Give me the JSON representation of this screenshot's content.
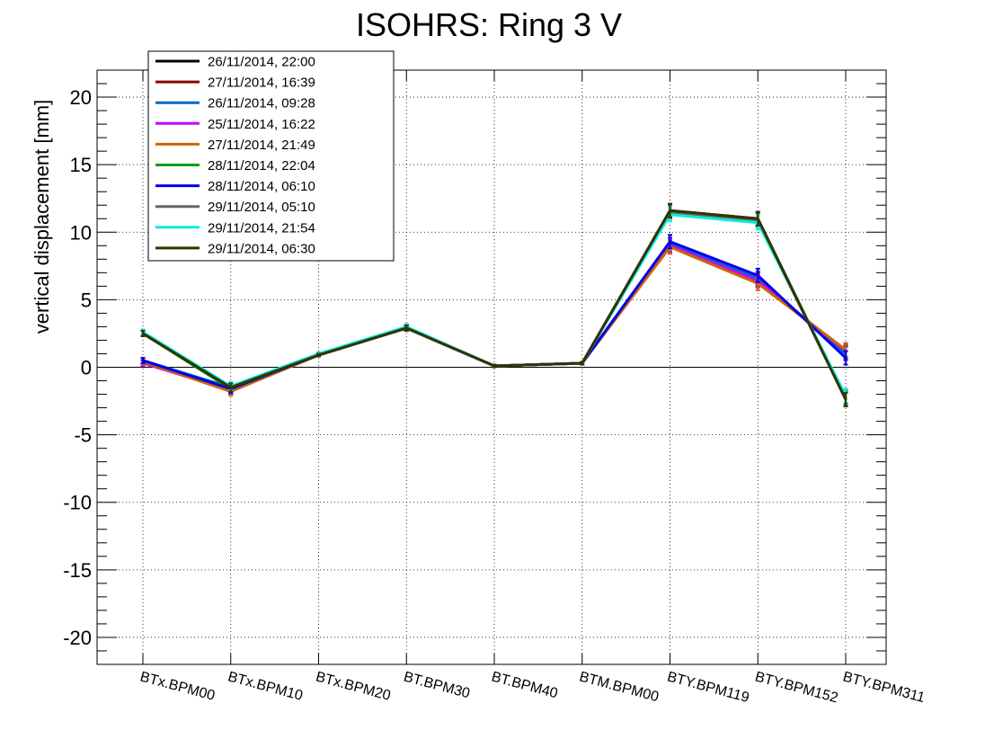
{
  "chart_data": {
    "type": "line",
    "title": "ISOHRS: Ring 3 V",
    "xlabel": "",
    "ylabel": "vertical displacement [mm]",
    "ylim": [
      -22,
      22
    ],
    "yticks": [
      -20,
      -15,
      -10,
      -5,
      0,
      5,
      10,
      15,
      20
    ],
    "grid": true,
    "zero_line": true,
    "legend_position": "top-left",
    "categories": [
      "BTx.BPM00",
      "BTx.BPM10",
      "BTx.BPM20",
      "BT.BPM30",
      "BT.BPM40",
      "BTM.BPM00",
      "BTY.BPM119",
      "BTY.BPM152",
      "BTY.BPM311"
    ],
    "series": [
      {
        "name": "26/11/2014, 22:00",
        "color": "#000000",
        "values": [
          2.5,
          -1.5,
          0.9,
          2.9,
          0.1,
          0.3,
          11.6,
          11.0,
          -2.3
        ],
        "errors": [
          0.2,
          0.3,
          0.1,
          0.2,
          0.1,
          0.1,
          0.5,
          0.5,
          0.5
        ]
      },
      {
        "name": "27/11/2014, 16:39",
        "color": "#8b0000",
        "values": [
          0.4,
          -1.7,
          0.9,
          2.9,
          0.1,
          0.3,
          9.0,
          6.5,
          1.1
        ],
        "errors": [
          0.2,
          0.3,
          0.1,
          0.2,
          0.1,
          0.1,
          0.5,
          0.5,
          0.5
        ]
      },
      {
        "name": "26/11/2014, 09:28",
        "color": "#0066cc",
        "values": [
          0.5,
          -1.5,
          0.9,
          2.9,
          0.1,
          0.3,
          9.1,
          6.6,
          1.0
        ],
        "errors": [
          0.2,
          0.3,
          0.1,
          0.2,
          0.1,
          0.1,
          0.5,
          0.5,
          0.5
        ]
      },
      {
        "name": "25/11/2014, 16:22",
        "color": "#cc00ff",
        "values": [
          0.3,
          -1.7,
          0.9,
          2.9,
          0.1,
          0.3,
          9.0,
          6.4,
          1.2
        ],
        "errors": [
          0.2,
          0.3,
          0.1,
          0.2,
          0.1,
          0.1,
          0.5,
          0.5,
          0.5
        ]
      },
      {
        "name": "27/11/2014, 21:49",
        "color": "#cc6600",
        "values": [
          0.4,
          -1.8,
          0.9,
          2.9,
          0.1,
          0.3,
          8.9,
          6.2,
          1.3
        ],
        "errors": [
          0.2,
          0.3,
          0.1,
          0.2,
          0.1,
          0.1,
          0.5,
          0.5,
          0.5
        ]
      },
      {
        "name": "28/11/2014, 22:04",
        "color": "#00a000",
        "values": [
          2.5,
          -1.6,
          0.9,
          2.9,
          0.1,
          0.3,
          11.5,
          10.9,
          -2.2
        ],
        "errors": [
          0.2,
          0.3,
          0.1,
          0.2,
          0.1,
          0.1,
          0.5,
          0.5,
          0.5
        ]
      },
      {
        "name": "28/11/2014, 06:10",
        "color": "#0000ee",
        "values": [
          0.5,
          -1.6,
          0.9,
          2.9,
          0.1,
          0.3,
          9.3,
          6.8,
          0.7
        ],
        "errors": [
          0.2,
          0.3,
          0.1,
          0.2,
          0.1,
          0.1,
          0.5,
          0.5,
          0.5
        ]
      },
      {
        "name": "29/11/2014, 05:10",
        "color": "#666666",
        "values": [
          2.5,
          -1.5,
          0.9,
          2.9,
          0.1,
          0.3,
          11.5,
          10.9,
          -2.3
        ],
        "errors": [
          0.2,
          0.3,
          0.1,
          0.2,
          0.1,
          0.1,
          0.5,
          0.5,
          0.5
        ]
      },
      {
        "name": "29/11/2014, 21:54",
        "color": "#00eedd",
        "values": [
          2.6,
          -1.4,
          1.0,
          3.0,
          0.1,
          0.3,
          11.3,
          10.7,
          -2.1
        ],
        "errors": [
          0.2,
          0.3,
          0.1,
          0.2,
          0.1,
          0.1,
          0.5,
          0.5,
          0.5
        ]
      },
      {
        "name": "29/11/2014, 06:30",
        "color": "#333300",
        "values": [
          2.5,
          -1.5,
          0.9,
          2.9,
          0.1,
          0.3,
          11.6,
          11.0,
          -2.4
        ],
        "errors": [
          0.2,
          0.3,
          0.1,
          0.2,
          0.1,
          0.1,
          0.5,
          0.5,
          0.5
        ]
      }
    ]
  }
}
